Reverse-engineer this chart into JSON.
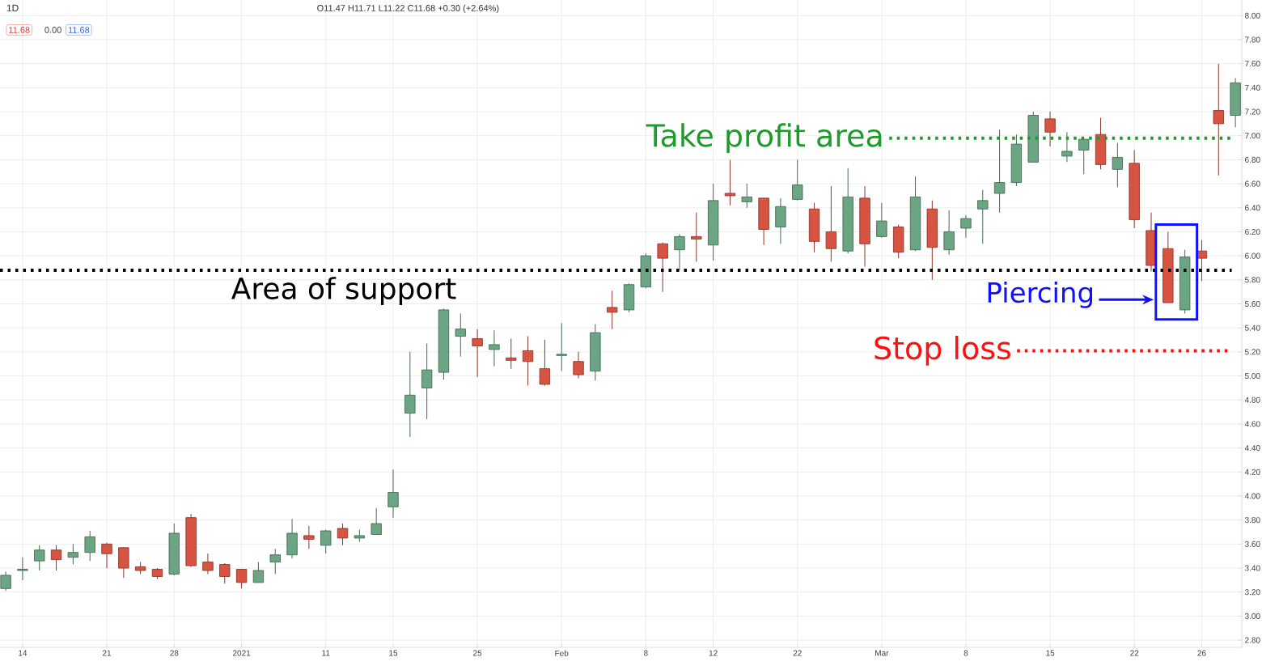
{
  "chart_data": {
    "type": "candlestick",
    "title": "1D",
    "categories": [
      null,
      "14",
      null,
      null,
      null,
      null,
      "21",
      null,
      null,
      null,
      "28",
      null,
      null,
      null,
      "2021",
      null,
      null,
      null,
      null,
      "11",
      null,
      null,
      null,
      "15",
      null,
      null,
      null,
      null,
      "25",
      null,
      null,
      null,
      null,
      "Feb",
      null,
      null,
      null,
      null,
      "8",
      null,
      null,
      null,
      "12",
      null,
      null,
      null,
      null,
      "22",
      null,
      null,
      null,
      null,
      "Mar",
      null,
      null,
      null,
      null,
      "8",
      null,
      null,
      null,
      null,
      "15",
      null,
      null,
      null,
      null,
      "22",
      null,
      null,
      null,
      "26",
      null,
      null
    ],
    "ohlc": [
      [
        3.23,
        3.37,
        3.21,
        3.34
      ],
      [
        3.38,
        3.49,
        3.3,
        3.39
      ],
      [
        3.46,
        3.59,
        3.38,
        3.55
      ],
      [
        3.55,
        3.59,
        3.38,
        3.47
      ],
      [
        3.49,
        3.6,
        3.43,
        3.53
      ],
      [
        3.53,
        3.71,
        3.46,
        3.66
      ],
      [
        3.6,
        3.61,
        3.4,
        3.52
      ],
      [
        3.57,
        3.57,
        3.32,
        3.4
      ],
      [
        3.41,
        3.45,
        3.35,
        3.38
      ],
      [
        3.39,
        3.4,
        3.31,
        3.33
      ],
      [
        3.35,
        3.77,
        3.34,
        3.69
      ],
      [
        3.82,
        3.85,
        3.41,
        3.42
      ],
      [
        3.45,
        3.52,
        3.35,
        3.38
      ],
      [
        3.43,
        3.44,
        3.27,
        3.33
      ],
      [
        3.39,
        3.39,
        3.23,
        3.28
      ],
      [
        3.28,
        3.45,
        3.28,
        3.38
      ],
      [
        3.45,
        3.56,
        3.35,
        3.51
      ],
      [
        3.51,
        3.81,
        3.48,
        3.69
      ],
      [
        3.67,
        3.75,
        3.56,
        3.64
      ],
      [
        3.59,
        3.72,
        3.52,
        3.71
      ],
      [
        3.73,
        3.77,
        3.59,
        3.65
      ],
      [
        3.65,
        3.72,
        3.62,
        3.67
      ],
      [
        3.68,
        3.9,
        3.68,
        3.77
      ],
      [
        3.91,
        4.22,
        3.82,
        4.03
      ],
      [
        4.69,
        5.2,
        4.49,
        4.84
      ],
      [
        4.9,
        5.27,
        4.64,
        5.05
      ],
      [
        5.03,
        5.56,
        4.97,
        5.55
      ],
      [
        5.33,
        5.52,
        5.16,
        5.39
      ],
      [
        5.31,
        5.39,
        4.99,
        5.25
      ],
      [
        5.22,
        5.38,
        5.08,
        5.26
      ],
      [
        5.15,
        5.31,
        5.06,
        5.13
      ],
      [
        5.21,
        5.33,
        4.92,
        5.12
      ],
      [
        5.06,
        5.3,
        4.92,
        4.93
      ],
      [
        5.17,
        5.44,
        5.04,
        5.18
      ],
      [
        5.12,
        5.2,
        4.98,
        5.01
      ],
      [
        5.04,
        5.43,
        4.96,
        5.36
      ],
      [
        5.57,
        5.71,
        5.39,
        5.53
      ],
      [
        5.55,
        5.77,
        5.53,
        5.76
      ],
      [
        5.74,
        6.02,
        5.73,
        6.0
      ],
      [
        6.1,
        6.11,
        5.7,
        5.98
      ],
      [
        6.05,
        6.18,
        5.88,
        6.16
      ],
      [
        6.16,
        6.36,
        5.95,
        6.14
      ],
      [
        6.09,
        6.6,
        5.96,
        6.46
      ],
      [
        6.52,
        6.8,
        6.42,
        6.5
      ],
      [
        6.45,
        6.6,
        6.4,
        6.49
      ],
      [
        6.48,
        6.48,
        6.09,
        6.22
      ],
      [
        6.24,
        6.48,
        6.1,
        6.41
      ],
      [
        6.47,
        6.8,
        6.46,
        6.59
      ],
      [
        6.39,
        6.44,
        6.03,
        6.12
      ],
      [
        6.2,
        6.58,
        5.95,
        6.06
      ],
      [
        6.04,
        6.73,
        6.02,
        6.49
      ],
      [
        6.48,
        6.58,
        5.91,
        6.1
      ],
      [
        6.16,
        6.44,
        6.15,
        6.29
      ],
      [
        6.24,
        6.26,
        5.98,
        6.03
      ],
      [
        6.05,
        6.66,
        6.04,
        6.49
      ],
      [
        6.39,
        6.46,
        5.8,
        6.07
      ],
      [
        6.05,
        6.38,
        6.01,
        6.2
      ],
      [
        6.23,
        6.34,
        6.15,
        6.31
      ],
      [
        6.39,
        6.55,
        6.1,
        6.46
      ],
      [
        6.52,
        7.05,
        6.36,
        6.61
      ],
      [
        6.61,
        7.01,
        6.58,
        6.93
      ],
      [
        6.78,
        7.2,
        6.78,
        7.17
      ],
      [
        7.14,
        7.2,
        6.91,
        7.03
      ],
      [
        6.83,
        7.03,
        6.78,
        6.87
      ],
      [
        6.88,
        6.97,
        6.68,
        6.97
      ],
      [
        7.01,
        7.15,
        6.72,
        6.76
      ],
      [
        6.72,
        6.94,
        6.57,
        6.82
      ],
      [
        6.77,
        6.88,
        6.23,
        6.3
      ],
      [
        6.21,
        6.36,
        5.87,
        5.92
      ],
      [
        6.06,
        6.2,
        5.61,
        5.61
      ],
      [
        5.55,
        6.05,
        5.52,
        5.99
      ],
      [
        6.04,
        6.13,
        5.79,
        5.98
      ],
      [
        7.21,
        7.6,
        6.67,
        7.1
      ],
      [
        7.17,
        7.48,
        7.07,
        7.44
      ]
    ],
    "colors": [
      "#6ba583",
      "#6ba583",
      "#6ba583",
      "#d75442",
      "#6ba583",
      "#6ba583",
      "#d75442",
      "#d75442",
      "#d75442",
      "#d75442",
      "#6ba583",
      "#d75442",
      "#d75442",
      "#d75442",
      "#d75442",
      "#6ba583",
      "#6ba583",
      "#6ba583",
      "#d75442",
      "#6ba583",
      "#d75442",
      "#6ba583",
      "#6ba583",
      "#6ba583",
      "#6ba583",
      "#6ba583",
      "#6ba583",
      "#6ba583",
      "#d75442",
      "#6ba583",
      "#d75442",
      "#d75442",
      "#d75442",
      "#6ba583",
      "#d75442",
      "#6ba583",
      "#d75442",
      "#6ba583",
      "#6ba583",
      "#d75442",
      "#6ba583",
      "#d75442",
      "#6ba583",
      "#d75442",
      "#6ba583",
      "#d75442",
      "#6ba583",
      "#6ba583",
      "#d75442",
      "#d75442",
      "#6ba583",
      "#d75442",
      "#6ba583",
      "#d75442",
      "#6ba583",
      "#d75442",
      "#6ba583",
      "#6ba583",
      "#6ba583",
      "#6ba583",
      "#6ba583",
      "#6ba583",
      "#d75442",
      "#6ba583",
      "#6ba583",
      "#d75442",
      "#6ba583",
      "#d75442",
      "#d75442",
      "#d75442",
      "#6ba583",
      "#d75442",
      "#d75442",
      "#6ba583"
    ],
    "ylim": [
      2.74,
      8.13
    ],
    "yticks": [
      {
        "value": 2.8,
        "label": "2.80"
      },
      {
        "value": 3.0,
        "label": "3.00"
      },
      {
        "value": 3.2,
        "label": "3.20"
      },
      {
        "value": 3.4,
        "label": "3.40"
      },
      {
        "value": 3.6,
        "label": "3.60"
      },
      {
        "value": 3.8,
        "label": "3.80"
      },
      {
        "value": 4.0,
        "label": "4.00"
      },
      {
        "value": 4.2,
        "label": "4.20"
      },
      {
        "value": 4.4,
        "label": "4.40"
      },
      {
        "value": 4.6,
        "label": "4.60"
      },
      {
        "value": 4.8,
        "label": "4.80"
      },
      {
        "value": 5.0,
        "label": "5.00"
      },
      {
        "value": 5.2,
        "label": "5.20"
      },
      {
        "value": 5.4,
        "label": "5.40"
      },
      {
        "value": 5.6,
        "label": "5.60"
      },
      {
        "value": 5.8,
        "label": "5.80"
      },
      {
        "value": 6.0,
        "label": "6.00"
      },
      {
        "value": 6.2,
        "label": "6.20"
      },
      {
        "value": 6.4,
        "label": "6.40"
      },
      {
        "value": 6.6,
        "label": "6.60"
      },
      {
        "value": 6.8,
        "label": "6.80"
      },
      {
        "value": 7.0,
        "label": "7.00"
      },
      {
        "value": 7.2,
        "label": "7.20"
      },
      {
        "value": 7.4,
        "label": "7.40"
      },
      {
        "value": 7.6,
        "label": "7.60"
      },
      {
        "value": 7.8,
        "label": "7.80"
      },
      {
        "value": 8.0,
        "label": "8.00"
      }
    ],
    "grid": true,
    "ref_lines": [
      {
        "axis": "y",
        "value": 5.88,
        "label": "Area of support",
        "color": "#000000",
        "line_style": "dotted"
      },
      {
        "axis": "y",
        "value": 6.98,
        "label": "Take profit area",
        "color": "#1f9a2c",
        "line_style": "dotted"
      },
      {
        "axis": "y",
        "value": 5.21,
        "label": "Stop loss",
        "color": "#ff1010",
        "line_style": "dotted"
      }
    ],
    "annotations": [
      "O11.47 H11.71 L11.22 C11.68 +0.30 (+2.64%)",
      "11.68",
      "0.00",
      "11.68",
      "Piercing"
    ]
  }
}
